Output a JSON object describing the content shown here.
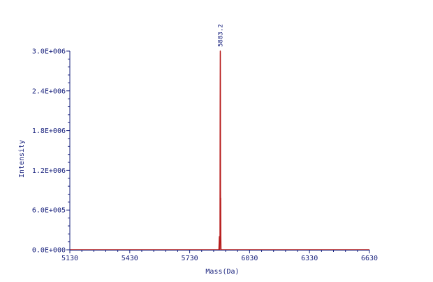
{
  "chart_data": {
    "type": "line",
    "title": "",
    "xlabel": "Mass(Da)",
    "ylabel": "Intensity",
    "xlim": [
      5130,
      6630
    ],
    "ylim": [
      0,
      3000000
    ],
    "x_ticks": [
      5130,
      5430,
      5730,
      6030,
      6330,
      6630
    ],
    "x_tick_labels": [
      "5130",
      "5430",
      "5730",
      "6030",
      "6330",
      "6630"
    ],
    "y_ticks": [
      0,
      600000,
      1200000,
      1800000,
      2400000,
      3000000
    ],
    "y_tick_labels": [
      "0.0E+000",
      "6.0E+005",
      "1.2E+006",
      "1.8E+006",
      "2.4E+006",
      "3.0E+006"
    ],
    "grid": false,
    "series": [
      {
        "color": "#b71c1c",
        "points": [
          [
            5130,
            0
          ],
          [
            5876,
            0
          ],
          [
            5878.5,
            200000
          ],
          [
            5880,
            0
          ],
          [
            5881.5,
            0
          ],
          [
            5882.4,
            2150000
          ],
          [
            5883.0,
            2950000
          ],
          [
            5883.2,
            3000000
          ],
          [
            5883.6,
            2980000
          ],
          [
            5884.0,
            2500000
          ],
          [
            5884.4,
            900000
          ],
          [
            5884.8,
            600000
          ],
          [
            5885.4,
            780000
          ],
          [
            5886.0,
            200000
          ],
          [
            5887.0,
            0
          ],
          [
            6630,
            0
          ]
        ]
      }
    ],
    "peak_annotations": [
      {
        "x": 5883.2,
        "y": 3000000,
        "label": "5883.2"
      }
    ],
    "colors": {
      "axis": "#1a237e",
      "baseline": "#b71c1c",
      "trace": "#b71c1c"
    }
  }
}
